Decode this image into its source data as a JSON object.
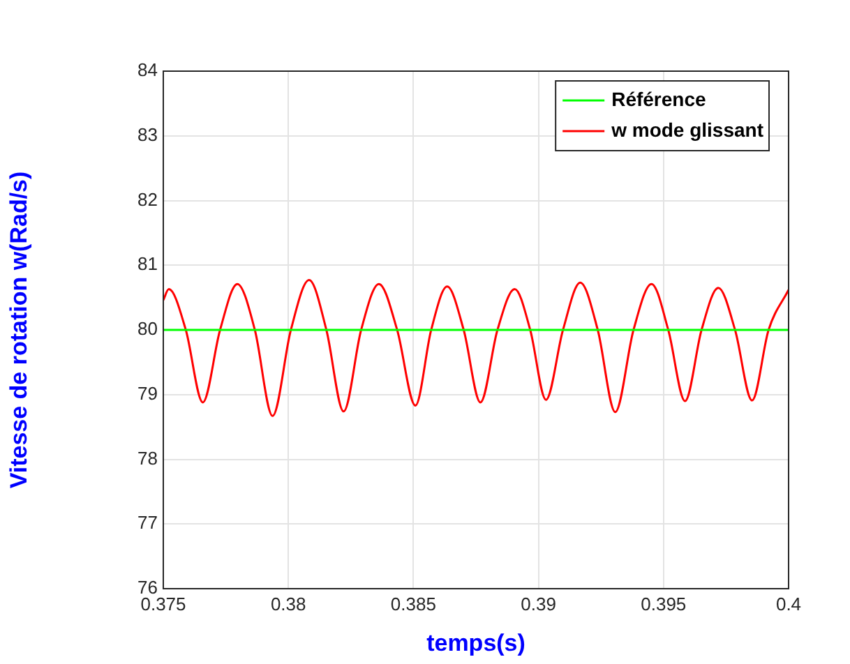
{
  "chart_data": {
    "type": "line",
    "xlabel": "temps(s)",
    "ylabel": "Vitesse de rotation w(Rad/s)",
    "xlim": [
      0.375,
      0.4
    ],
    "xticks": [
      0.375,
      0.38,
      0.385,
      0.39,
      0.395,
      0.4
    ],
    "ylim": [
      76,
      84
    ],
    "yticks": [
      76,
      77,
      78,
      79,
      80,
      81,
      82,
      83,
      84
    ],
    "grid": true,
    "legend": "top right",
    "marker": "none",
    "line_style": "solid",
    "series": [
      {
        "name": "Référence",
        "color": "#00ff00",
        "x": [
          0.375,
          0.4
        ],
        "values": [
          80,
          80
        ]
      },
      {
        "name": "w mode glissant",
        "color": "#ff0000",
        "x": [
          0.375,
          0.37522,
          0.3759,
          0.37658,
          0.37727,
          0.37796,
          0.37866,
          0.37937,
          0.3801,
          0.38083,
          0.38152,
          0.38221,
          0.38291,
          0.38362,
          0.38435,
          0.38508,
          0.38571,
          0.38635,
          0.38701,
          0.38768,
          0.38836,
          0.38905,
          0.38967,
          0.3903,
          0.39098,
          0.39167,
          0.39237,
          0.39307,
          0.3938,
          0.39452,
          0.39519,
          0.39586,
          0.39652,
          0.39719,
          0.39786,
          0.39854,
          0.3992,
          0.4
        ],
        "values": [
          80.46,
          80.63,
          80,
          78.88,
          80,
          80.71,
          80,
          78.67,
          80,
          80.77,
          80,
          78.74,
          80,
          80.71,
          80,
          78.83,
          80,
          80.67,
          80,
          78.88,
          80,
          80.63,
          80,
          78.92,
          80,
          80.73,
          80,
          78.73,
          80,
          80.71,
          80,
          78.9,
          80,
          80.65,
          80,
          78.91,
          80,
          80.62
        ]
      }
    ]
  }
}
